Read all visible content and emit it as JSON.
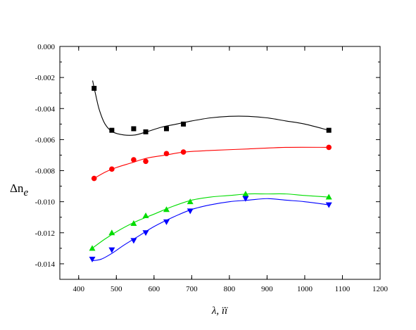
{
  "chart_data": {
    "type": "scatter",
    "xlabel": "λ, ïï",
    "ylabel_main": "Δn",
    "ylabel_sub": "e",
    "xlim": [
      350,
      1200
    ],
    "ylim": [
      -0.015,
      0.0
    ],
    "x_ticks": [
      400,
      500,
      600,
      700,
      800,
      900,
      1000,
      1100,
      1200
    ],
    "x_tick_labels": [
      "400",
      "500",
      "600",
      "700",
      "800",
      "900",
      "1000",
      "1100",
      "1200"
    ],
    "y_ticks": [
      0.0,
      -0.002,
      -0.004,
      -0.006,
      -0.008,
      -0.01,
      -0.012,
      -0.014
    ],
    "y_tick_labels": [
      "0.000",
      "-0.002",
      "-0.004",
      "-0.006",
      "-0.008",
      "-0.010",
      "-0.012",
      "-0.014"
    ],
    "grid": false,
    "legend": "none",
    "series": [
      {
        "marker": "square",
        "color": "#000000",
        "points": [
          [
            441,
            -0.0027
          ],
          [
            488,
            -0.0054
          ],
          [
            546,
            -0.0053
          ],
          [
            578,
            -0.0055
          ],
          [
            633,
            -0.0053
          ],
          [
            678,
            -0.005
          ],
          [
            1064,
            -0.0054
          ]
        ],
        "fit": [
          [
            437,
            -0.0022
          ],
          [
            445,
            -0.0031
          ],
          [
            455,
            -0.0041
          ],
          [
            470,
            -0.005
          ],
          [
            490,
            -0.0055
          ],
          [
            520,
            -0.0057
          ],
          [
            550,
            -0.0057
          ],
          [
            580,
            -0.0055
          ],
          [
            620,
            -0.0052
          ],
          [
            660,
            -0.005
          ],
          [
            700,
            -0.0048
          ],
          [
            750,
            -0.0046
          ],
          [
            800,
            -0.0045
          ],
          [
            850,
            -0.0045
          ],
          [
            900,
            -0.0046
          ],
          [
            950,
            -0.0048
          ],
          [
            1000,
            -0.005
          ],
          [
            1064,
            -0.0054
          ]
        ]
      },
      {
        "marker": "circle",
        "color": "#ff0000",
        "points": [
          [
            441,
            -0.0085
          ],
          [
            488,
            -0.0079
          ],
          [
            546,
            -0.0073
          ],
          [
            578,
            -0.0074
          ],
          [
            633,
            -0.0069
          ],
          [
            678,
            -0.0068
          ],
          [
            1064,
            -0.0065
          ]
        ],
        "fit": [
          [
            441,
            -0.0085
          ],
          [
            470,
            -0.0081
          ],
          [
            500,
            -0.0078
          ],
          [
            540,
            -0.0075
          ],
          [
            580,
            -0.0072
          ],
          [
            630,
            -0.007
          ],
          [
            680,
            -0.0068
          ],
          [
            750,
            -0.0067
          ],
          [
            850,
            -0.0066
          ],
          [
            950,
            -0.0065
          ],
          [
            1064,
            -0.0065
          ]
        ]
      },
      {
        "marker": "triangle-up",
        "color": "#00dd00",
        "points": [
          [
            436,
            -0.013
          ],
          [
            488,
            -0.012
          ],
          [
            546,
            -0.0114
          ],
          [
            578,
            -0.0109
          ],
          [
            633,
            -0.0105
          ],
          [
            696,
            -0.01
          ],
          [
            843,
            -0.0095
          ],
          [
            1064,
            -0.0097
          ]
        ],
        "fit": [
          [
            436,
            -0.013
          ],
          [
            470,
            -0.0124
          ],
          [
            510,
            -0.0118
          ],
          [
            550,
            -0.0113
          ],
          [
            600,
            -0.0108
          ],
          [
            650,
            -0.0103
          ],
          [
            700,
            -0.0099
          ],
          [
            750,
            -0.0097
          ],
          [
            800,
            -0.0096
          ],
          [
            850,
            -0.0095
          ],
          [
            900,
            -0.0095
          ],
          [
            950,
            -0.0095
          ],
          [
            1000,
            -0.0096
          ],
          [
            1064,
            -0.0097
          ]
        ]
      },
      {
        "marker": "triangle-down",
        "color": "#0000ff",
        "points": [
          [
            436,
            -0.0137
          ],
          [
            488,
            -0.0131
          ],
          [
            546,
            -0.0125
          ],
          [
            578,
            -0.012
          ],
          [
            633,
            -0.0113
          ],
          [
            696,
            -0.0106
          ],
          [
            843,
            -0.0098
          ],
          [
            1064,
            -0.0102
          ]
        ],
        "fit": [
          [
            436,
            -0.0138
          ],
          [
            460,
            -0.0137
          ],
          [
            490,
            -0.0133
          ],
          [
            520,
            -0.0128
          ],
          [
            560,
            -0.0122
          ],
          [
            600,
            -0.0116
          ],
          [
            650,
            -0.011
          ],
          [
            700,
            -0.0105
          ],
          [
            750,
            -0.0102
          ],
          [
            800,
            -0.01
          ],
          [
            850,
            -0.0099
          ],
          [
            900,
            -0.0098
          ],
          [
            950,
            -0.0099
          ],
          [
            1000,
            -0.01
          ],
          [
            1064,
            -0.0102
          ]
        ]
      }
    ]
  }
}
